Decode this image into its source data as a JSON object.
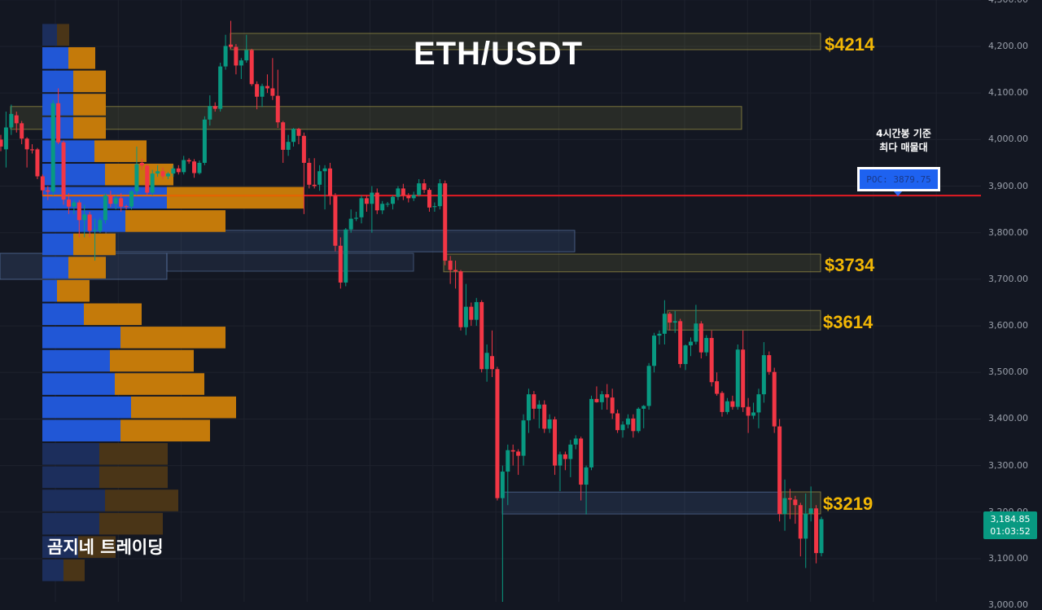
{
  "chart_data": {
    "type": "candlestick",
    "title": "ETH/USDT",
    "ylim": [
      3000,
      4300
    ],
    "y_ticks": [
      "3,000.00",
      "3,100.00",
      "3,200.00",
      "3,300.00",
      "3,400.00",
      "3,500.00",
      "3,600.00",
      "3,700.00",
      "3,800.00",
      "3,900.00",
      "4,000.00",
      "4,100.00",
      "4,200.00",
      "4,300.00"
    ],
    "y_tick_values": [
      3000,
      3100,
      3200,
      3300,
      3400,
      3500,
      3600,
      3700,
      3800,
      3900,
      4000,
      4100,
      4200,
      4300
    ],
    "grid": true,
    "colors": {
      "up": "#089981",
      "down": "#f23645",
      "background": "#131722",
      "poc_line": "#e31b23",
      "level_label": "#f2b705",
      "profile_buy": "#2157d6",
      "profile_sell": "#c47a0a"
    },
    "ohlc": [
      [
        4000,
        4010,
        3975,
        3985
      ],
      [
        3979,
        4060,
        3940,
        4026
      ],
      [
        4026,
        4075,
        4010,
        4055
      ],
      [
        4052,
        4060,
        4015,
        4035
      ],
      [
        4035,
        4040,
        3990,
        4002
      ],
      [
        4002,
        4005,
        3940,
        3979
      ],
      [
        3979,
        3990,
        3970,
        3977
      ],
      [
        3979,
        3982,
        3915,
        3921
      ],
      [
        3921,
        3925,
        3880,
        3891
      ],
      [
        3891,
        3900,
        3870,
        3888
      ],
      [
        3888,
        4085,
        3880,
        4078
      ],
      [
        4078,
        4110,
        3990,
        3994
      ],
      [
        3994,
        3998,
        3860,
        3871
      ],
      [
        3871,
        3885,
        3840,
        3856
      ],
      [
        3856,
        3870,
        3840,
        3865
      ],
      [
        3865,
        3870,
        3790,
        3827
      ],
      [
        3827,
        3860,
        3790,
        3839
      ],
      [
        3839,
        3845,
        3790,
        3804
      ],
      [
        3804,
        3830,
        3740,
        3806
      ],
      [
        3804,
        3832,
        3800,
        3827
      ],
      [
        3827,
        3885,
        3820,
        3880
      ],
      [
        3880,
        3890,
        3855,
        3862
      ],
      [
        3862,
        3880,
        3850,
        3874
      ],
      [
        3874,
        3885,
        3845,
        3856
      ],
      [
        3857,
        3860,
        3850,
        3855
      ],
      [
        3856,
        3892,
        3850,
        3889
      ],
      [
        3889,
        3985,
        3880,
        3947
      ],
      [
        3950,
        3958,
        3935,
        3944
      ],
      [
        3944,
        3948,
        3880,
        3886
      ],
      [
        3886,
        3935,
        3880,
        3927
      ],
      [
        3927,
        3945,
        3920,
        3932
      ],
      [
        3932,
        3940,
        3915,
        3921
      ],
      [
        3921,
        3930,
        3915,
        3927
      ],
      [
        3927,
        3945,
        3920,
        3938
      ],
      [
        3938,
        3945,
        3925,
        3930
      ],
      [
        3930,
        3965,
        3925,
        3956
      ],
      [
        3956,
        3960,
        3948,
        3953
      ],
      [
        3953,
        3958,
        3918,
        3928
      ],
      [
        3928,
        3955,
        3925,
        3950
      ],
      [
        3950,
        4050,
        3945,
        4043
      ],
      [
        4043,
        4095,
        4030,
        4072
      ],
      [
        4072,
        4080,
        4060,
        4066
      ],
      [
        4066,
        4165,
        4060,
        4157
      ],
      [
        4157,
        4225,
        4150,
        4201
      ],
      [
        4204,
        4255,
        4195,
        4199
      ],
      [
        4199,
        4205,
        4140,
        4159
      ],
      [
        4159,
        4175,
        4130,
        4170
      ],
      [
        4170,
        4225,
        4165,
        4192
      ],
      [
        4192,
        4195,
        4115,
        4119
      ],
      [
        4119,
        4125,
        4065,
        4092
      ],
      [
        4092,
        4120,
        4070,
        4115
      ],
      [
        4115,
        4140,
        4100,
        4110
      ],
      [
        4110,
        4175,
        4085,
        4094
      ],
      [
        4094,
        4150,
        4025,
        4037
      ],
      [
        4037,
        4040,
        3950,
        3978
      ],
      [
        3978,
        4010,
        3965,
        3995
      ],
      [
        3995,
        4025,
        3985,
        4023
      ],
      [
        4023,
        4025,
        3990,
        4008
      ],
      [
        4008,
        4015,
        3840,
        3950
      ],
      [
        3950,
        3960,
        3895,
        3903
      ],
      [
        3903,
        3960,
        3895,
        3900
      ],
      [
        3903,
        3945,
        3890,
        3932
      ],
      [
        3932,
        3945,
        3850,
        3938
      ],
      [
        3938,
        3950,
        3860,
        3879
      ],
      [
        3879,
        3885,
        3760,
        3772
      ],
      [
        3772,
        3790,
        3680,
        3693
      ],
      [
        3693,
        3810,
        3685,
        3807
      ],
      [
        3807,
        3850,
        3800,
        3830
      ],
      [
        3830,
        3845,
        3825,
        3832
      ],
      [
        3833,
        3880,
        3820,
        3874
      ],
      [
        3874,
        3880,
        3845,
        3862
      ],
      [
        3862,
        3900,
        3800,
        3886
      ],
      [
        3886,
        3895,
        3840,
        3848
      ],
      [
        3848,
        3868,
        3840,
        3862
      ],
      [
        3862,
        3866,
        3855,
        3862
      ],
      [
        3862,
        3880,
        3850,
        3877
      ],
      [
        3877,
        3900,
        3870,
        3895
      ],
      [
        3895,
        3905,
        3870,
        3880
      ],
      [
        3880,
        3885,
        3865,
        3874
      ],
      [
        3874,
        3888,
        3868,
        3881
      ],
      [
        3881,
        3915,
        3878,
        3906
      ],
      [
        3906,
        3915,
        3885,
        3892
      ],
      [
        3892,
        3896,
        3845,
        3854
      ],
      [
        3855,
        3865,
        3845,
        3857
      ],
      [
        3857,
        3915,
        3850,
        3906
      ],
      [
        3906,
        3912,
        3730,
        3740
      ],
      [
        3740,
        3750,
        3690,
        3720
      ],
      [
        3720,
        3740,
        3680,
        3717
      ],
      [
        3717,
        3720,
        3590,
        3597
      ],
      [
        3597,
        3690,
        3580,
        3641
      ],
      [
        3641,
        3650,
        3600,
        3613
      ],
      [
        3613,
        3660,
        3600,
        3651
      ],
      [
        3651,
        3655,
        3500,
        3507
      ],
      [
        3507,
        3560,
        3480,
        3542
      ],
      [
        3535,
        3590,
        3490,
        3507
      ],
      [
        3507,
        3512,
        3225,
        3230
      ],
      [
        3230,
        3300,
        2980,
        3287
      ],
      [
        3287,
        3345,
        3215,
        3333
      ],
      [
        3333,
        3345,
        3300,
        3330
      ],
      [
        3330,
        3335,
        3280,
        3321
      ],
      [
        3321,
        3410,
        3300,
        3397
      ],
      [
        3397,
        3465,
        3370,
        3453
      ],
      [
        3453,
        3460,
        3400,
        3422
      ],
      [
        3422,
        3440,
        3380,
        3431
      ],
      [
        3431,
        3440,
        3370,
        3379
      ],
      [
        3379,
        3410,
        3370,
        3399
      ],
      [
        3399,
        3405,
        3280,
        3300
      ],
      [
        3300,
        3330,
        3245,
        3324
      ],
      [
        3324,
        3330,
        3290,
        3314
      ],
      [
        3314,
        3355,
        3275,
        3345
      ],
      [
        3345,
        3365,
        3335,
        3358
      ],
      [
        3358,
        3362,
        3225,
        3259
      ],
      [
        3259,
        3300,
        3195,
        3296
      ],
      [
        3296,
        3450,
        3290,
        3443
      ],
      [
        3443,
        3470,
        3435,
        3436
      ],
      [
        3436,
        3460,
        3420,
        3453
      ],
      [
        3453,
        3475,
        3420,
        3446
      ],
      [
        3446,
        3465,
        3400,
        3412
      ],
      [
        3412,
        3420,
        3370,
        3376
      ],
      [
        3376,
        3395,
        3360,
        3388
      ],
      [
        3388,
        3410,
        3380,
        3401
      ],
      [
        3401,
        3410,
        3360,
        3374
      ],
      [
        3374,
        3425,
        3370,
        3422
      ],
      [
        3422,
        3430,
        3380,
        3428
      ],
      [
        3428,
        3520,
        3420,
        3514
      ],
      [
        3514,
        3585,
        3500,
        3579
      ],
      [
        3579,
        3590,
        3560,
        3583
      ],
      [
        3583,
        3655,
        3560,
        3626
      ],
      [
        3626,
        3630,
        3590,
        3607
      ],
      [
        3607,
        3632,
        3585,
        3610
      ],
      [
        3610,
        3615,
        3510,
        3518
      ],
      [
        3518,
        3560,
        3505,
        3558
      ],
      [
        3558,
        3575,
        3535,
        3566
      ],
      [
        3566,
        3645,
        3560,
        3605
      ],
      [
        3605,
        3610,
        3530,
        3543
      ],
      [
        3543,
        3580,
        3535,
        3574
      ],
      [
        3574,
        3590,
        3470,
        3479
      ],
      [
        3481,
        3500,
        3450,
        3454
      ],
      [
        3456,
        3460,
        3405,
        3415
      ],
      [
        3415,
        3445,
        3410,
        3438
      ],
      [
        3438,
        3450,
        3420,
        3426
      ],
      [
        3426,
        3560,
        3420,
        3549
      ],
      [
        3549,
        3590,
        3415,
        3425
      ],
      [
        3426,
        3445,
        3370,
        3407
      ],
      [
        3407,
        3435,
        3400,
        3414
      ],
      [
        3414,
        3465,
        3380,
        3453
      ],
      [
        3453,
        3565,
        3435,
        3537
      ],
      [
        3537,
        3545,
        3495,
        3501
      ],
      [
        3501,
        3510,
        3370,
        3384
      ],
      [
        3384,
        3400,
        3180,
        3196
      ],
      [
        3196,
        3270,
        3160,
        3230
      ],
      [
        3230,
        3250,
        3185,
        3227
      ],
      [
        3227,
        3235,
        3175,
        3215
      ],
      [
        3215,
        3220,
        3105,
        3143
      ],
      [
        3143,
        3240,
        3080,
        3197
      ],
      [
        3197,
        3255,
        3180,
        3208
      ],
      [
        3208,
        3215,
        3090,
        3112
      ],
      [
        3112,
        3190,
        3105,
        3184.85
      ]
    ],
    "volume_profile": [
      {
        "bin": [
          4200,
          4250
        ],
        "buy": 18,
        "sell": 15,
        "dim": true
      },
      {
        "bin": [
          4150,
          4200
        ],
        "buy": 32,
        "sell": 33
      },
      {
        "bin": [
          4100,
          4150
        ],
        "buy": 38,
        "sell": 40
      },
      {
        "bin": [
          4050,
          4100
        ],
        "buy": 38,
        "sell": 40
      },
      {
        "bin": [
          4000,
          4050
        ],
        "buy": 38,
        "sell": 40
      },
      {
        "bin": [
          3950,
          4000
        ],
        "buy": 64,
        "sell": 64
      },
      {
        "bin": [
          3900,
          3950
        ],
        "buy": 77,
        "sell": 84
      },
      {
        "bin": [
          3850,
          3900
        ],
        "buy": 153,
        "sell": 168,
        "poc": true
      },
      {
        "bin": [
          3800,
          3850
        ],
        "buy": 102,
        "sell": 123
      },
      {
        "bin": [
          3750,
          3800
        ],
        "buy": 38,
        "sell": 52
      },
      {
        "bin": [
          3700,
          3750
        ],
        "buy": 32,
        "sell": 46
      },
      {
        "bin": [
          3650,
          3700
        ],
        "buy": 18,
        "sell": 40
      },
      {
        "bin": [
          3600,
          3650
        ],
        "buy": 51,
        "sell": 71
      },
      {
        "bin": [
          3550,
          3600
        ],
        "buy": 96,
        "sell": 129
      },
      {
        "bin": [
          3500,
          3550
        ],
        "buy": 83,
        "sell": 103
      },
      {
        "bin": [
          3450,
          3500
        ],
        "buy": 89,
        "sell": 110
      },
      {
        "bin": [
          3400,
          3450
        ],
        "buy": 109,
        "sell": 129
      },
      {
        "bin": [
          3350,
          3400
        ],
        "buy": 96,
        "sell": 110
      },
      {
        "bin": [
          3300,
          3350
        ],
        "buy": 70,
        "sell": 84,
        "dim": true
      },
      {
        "bin": [
          3250,
          3300
        ],
        "buy": 70,
        "sell": 84,
        "dim": true
      },
      {
        "bin": [
          3200,
          3250
        ],
        "buy": 77,
        "sell": 90,
        "dim": true
      },
      {
        "bin": [
          3150,
          3200
        ],
        "buy": 70,
        "sell": 78,
        "dim": true
      },
      {
        "bin": [
          3100,
          3150
        ],
        "buy": 44,
        "sell": 46,
        "dim": true
      },
      {
        "bin": [
          3050,
          3100
        ],
        "buy": 26,
        "sell": 26,
        "dim": true
      }
    ],
    "poc": 3879.75,
    "zones": [
      {
        "top": 4228,
        "bottom": 4193,
        "label": "$4214"
      },
      {
        "top": 4071,
        "bottom": 4022,
        "label": ""
      },
      {
        "top": 3805,
        "bottom": 3759,
        "label": ""
      },
      {
        "top": 3754,
        "bottom": 3716,
        "label": "$3734"
      },
      {
        "top": 3633,
        "bottom": 3591,
        "label": "$3614"
      },
      {
        "top": 3243,
        "bottom": 3196,
        "label": "$3219"
      }
    ]
  },
  "annotations": {
    "pair_title": "ETH/USDT",
    "note_line1": "4시간봉 기준",
    "note_line2": "최다 매물대",
    "poc_label": "POC: 3879.75",
    "brand": "곰지네 트레이딩"
  },
  "price_tag": {
    "price": "3,184.85",
    "countdown": "01:03:52"
  }
}
